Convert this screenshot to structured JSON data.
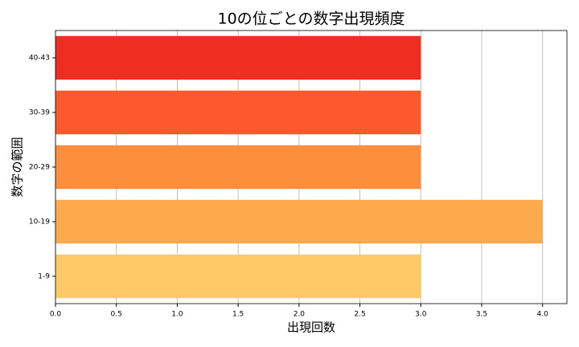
{
  "chart_data": {
    "type": "barh",
    "title": "10の位ごとの数字出現頻度",
    "xlabel": "出現回数",
    "ylabel": "数字の範囲",
    "categories": [
      "1-9",
      "10-19",
      "20-29",
      "30-39",
      "40-43"
    ],
    "values": [
      3,
      4,
      3,
      3,
      3
    ],
    "colors": [
      "#fdca66",
      "#fdaa4c",
      "#fd8e3c",
      "#fc5a2d",
      "#ef2e22"
    ],
    "xlim": [
      0,
      4.2
    ],
    "xticks": [
      {
        "value": 0,
        "label": "0.0"
      },
      {
        "value": 0.5,
        "label": "0.5"
      },
      {
        "value": 1,
        "label": "1.0"
      },
      {
        "value": 1.5,
        "label": "1.5"
      },
      {
        "value": 2,
        "label": "2.0"
      },
      {
        "value": 2.5,
        "label": "2.5"
      },
      {
        "value": 3,
        "label": "3.0"
      },
      {
        "value": 3.5,
        "label": "3.5"
      },
      {
        "value": 4,
        "label": "4.0"
      }
    ],
    "grid": true
  }
}
